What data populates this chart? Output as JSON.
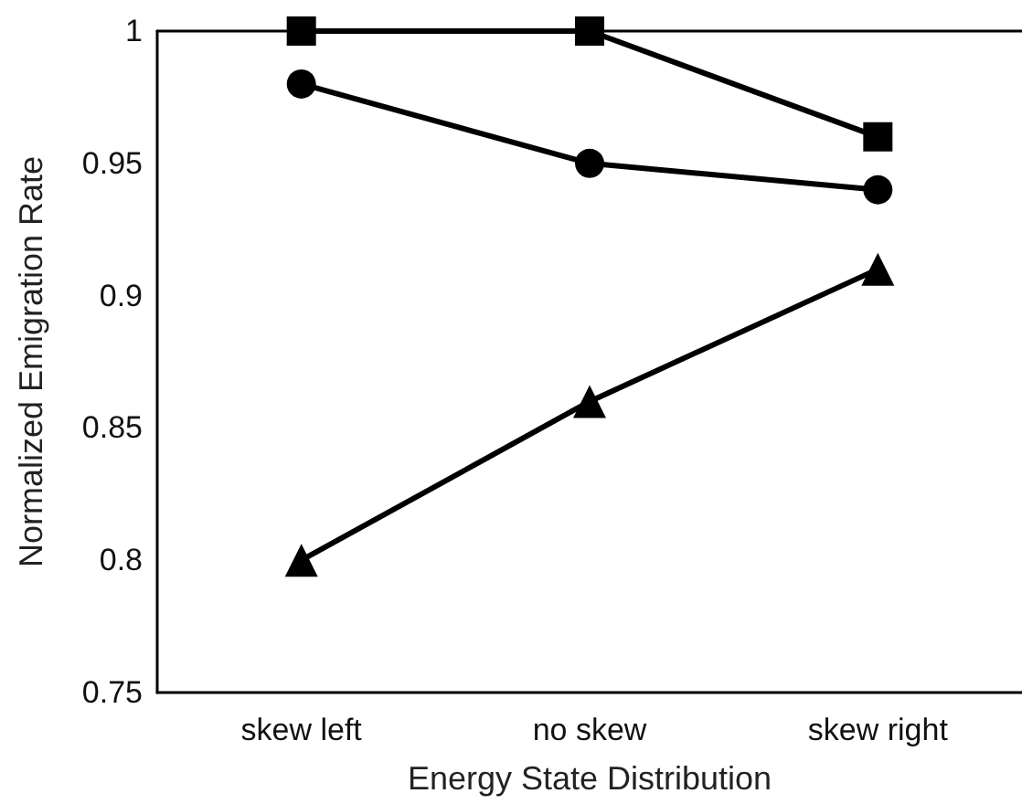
{
  "chart_data": {
    "type": "line",
    "xlabel": "Energy State Distribution",
    "ylabel": "Normalized Emigration Rate",
    "categories": [
      "skew left",
      "no skew",
      "skew right"
    ],
    "series": [
      {
        "color": "#000000",
        "marker": "square",
        "values": [
          1,
          1,
          0.96
        ]
      },
      {
        "color": "#000000",
        "marker": "circle",
        "values": [
          0.98,
          0.95,
          0.94
        ]
      },
      {
        "color": "#000000",
        "marker": "triangle",
        "values": [
          0.8,
          0.86,
          0.91
        ]
      }
    ],
    "ylim": [
      0.75,
      1
    ],
    "yticks": [
      0.75,
      0.8,
      0.85,
      0.9,
      0.95,
      1
    ],
    "grid": false,
    "line_style": "solid"
  }
}
